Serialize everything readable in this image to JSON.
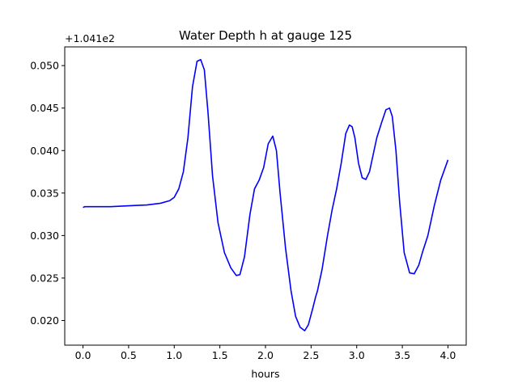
{
  "chart_data": {
    "type": "line",
    "title": "Water Depth h at gauge 125",
    "xlabel": "hours",
    "ylabel": "",
    "offset_label": "+1.041e2",
    "grid": false,
    "xlim": [
      -0.2,
      4.2
    ],
    "ylim": [
      0.0171,
      0.0522
    ],
    "xticks": [
      0.0,
      0.5,
      1.0,
      1.5,
      2.0,
      2.5,
      3.0,
      3.5,
      4.0
    ],
    "xtick_labels": [
      "0.0",
      "0.5",
      "1.0",
      "1.5",
      "2.0",
      "2.5",
      "3.0",
      "3.5",
      "4.0"
    ],
    "yticks": [
      0.02,
      0.025,
      0.03,
      0.035,
      0.04,
      0.045,
      0.05
    ],
    "ytick_labels": [
      "0.020",
      "0.025",
      "0.030",
      "0.035",
      "0.040",
      "0.045",
      "0.050"
    ],
    "series": [
      {
        "color": "#0000ff",
        "x": [
          0.0,
          0.02,
          0.1,
          0.3,
          0.5,
          0.7,
          0.85,
          0.95,
          1.0,
          1.05,
          1.1,
          1.15,
          1.2,
          1.25,
          1.29,
          1.33,
          1.37,
          1.42,
          1.48,
          1.55,
          1.62,
          1.68,
          1.72,
          1.77,
          1.83,
          1.88,
          1.93,
          1.98,
          2.03,
          2.08,
          2.12,
          2.16,
          2.22,
          2.28,
          2.33,
          2.38,
          2.43,
          2.47,
          2.52,
          2.55,
          2.57,
          2.62,
          2.68,
          2.73,
          2.78,
          2.83,
          2.88,
          2.92,
          2.95,
          2.98,
          3.02,
          3.06,
          3.1,
          3.14,
          3.18,
          3.22,
          3.27,
          3.32,
          3.36,
          3.39,
          3.43,
          3.47,
          3.52,
          3.58,
          3.63,
          3.68,
          3.72,
          3.78,
          3.85,
          3.92,
          4.0
        ],
        "y": [
          0.0333,
          0.0334,
          0.0334,
          0.0334,
          0.0335,
          0.0336,
          0.0338,
          0.0341,
          0.0345,
          0.0355,
          0.0375,
          0.0415,
          0.0475,
          0.0505,
          0.0507,
          0.0495,
          0.0445,
          0.037,
          0.0315,
          0.028,
          0.0262,
          0.0253,
          0.0254,
          0.0275,
          0.0325,
          0.0355,
          0.0365,
          0.038,
          0.0408,
          0.0417,
          0.04,
          0.035,
          0.0285,
          0.0235,
          0.0205,
          0.0192,
          0.0188,
          0.0195,
          0.0215,
          0.0228,
          0.0235,
          0.026,
          0.03,
          0.033,
          0.0355,
          0.0385,
          0.042,
          0.043,
          0.0428,
          0.0415,
          0.0385,
          0.0368,
          0.0366,
          0.0375,
          0.0395,
          0.0415,
          0.0432,
          0.0448,
          0.045,
          0.044,
          0.04,
          0.034,
          0.028,
          0.0256,
          0.0255,
          0.0265,
          0.028,
          0.03,
          0.0335,
          0.0365,
          0.0389
        ]
      }
    ]
  }
}
